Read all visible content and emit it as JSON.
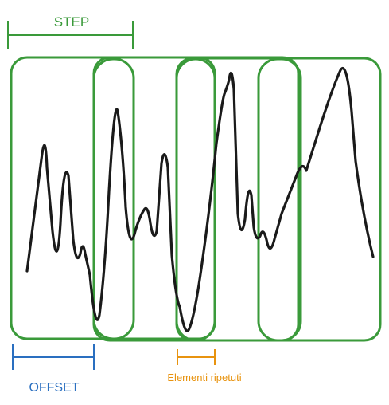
{
  "labels": {
    "step": "STEP",
    "offset": "OFFSET",
    "repeated": "Elementi ripetuti"
  },
  "colors": {
    "step": "#3a9a3a",
    "window": "#3a9a3a",
    "offset": "#2a6fc0",
    "repeated": "#e8930f",
    "signal": "#1a1a1a"
  }
}
